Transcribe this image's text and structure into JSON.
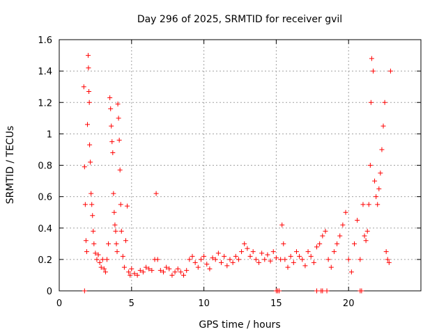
{
  "chart_data": {
    "type": "scatter",
    "title": "Day 296 of 2025, SRMTID for receiver gvil",
    "xlabel": "GPS time / hours",
    "ylabel": "SRMTID / TECUs",
    "xlim": [
      0,
      25
    ],
    "ylim": [
      0,
      1.6
    ],
    "xticks": [
      0,
      5,
      10,
      15,
      20
    ],
    "yticks": [
      0,
      0.2,
      0.4,
      0.6,
      0.8,
      1,
      1.2,
      1.4,
      1.6
    ],
    "xtick_labels": [
      "0",
      "5",
      "10",
      "15",
      "20"
    ],
    "ytick_labels": [
      "0",
      "0.2",
      "0.4",
      "0.6",
      "0.8",
      "1",
      "1.2",
      "1.4",
      "1.6"
    ],
    "grid": true,
    "marker": "+",
    "color": "#ff0000",
    "series": [
      {
        "name": "SRMTID",
        "x": [
          1.75,
          1.8,
          1.85,
          1.9,
          1.95,
          2.0,
          2.02,
          2.05,
          2.08,
          2.1,
          2.15,
          2.2,
          2.25,
          2.3,
          2.35,
          2.4,
          2.5,
          2.6,
          2.7,
          2.8,
          2.9,
          3.0,
          3.1,
          3.2,
          3.3,
          3.4,
          3.5,
          3.55,
          3.6,
          3.65,
          3.7,
          3.75,
          3.8,
          3.85,
          3.9,
          3.95,
          4.0,
          4.05,
          4.1,
          4.15,
          4.2,
          4.25,
          4.3,
          4.4,
          4.5,
          4.6,
          4.7,
          4.8,
          4.9,
          5.0,
          5.2,
          5.4,
          5.6,
          5.8,
          6.0,
          6.2,
          6.4,
          6.6,
          6.7,
          6.8,
          7.0,
          7.2,
          7.4,
          7.6,
          7.8,
          8.0,
          8.2,
          8.4,
          8.6,
          8.8,
          9.0,
          9.2,
          9.4,
          9.6,
          9.8,
          10.0,
          10.2,
          10.4,
          10.6,
          10.8,
          11.0,
          11.2,
          11.4,
          11.6,
          11.8,
          12.0,
          12.2,
          12.4,
          12.6,
          12.8,
          13.0,
          13.2,
          13.4,
          13.6,
          13.8,
          14.0,
          14.2,
          14.4,
          14.6,
          14.8,
          15.0,
          15.1,
          15.3,
          15.4,
          15.5,
          15.6,
          15.8,
          16.0,
          16.2,
          16.4,
          16.6,
          16.8,
          17.0,
          17.2,
          17.4,
          17.6,
          17.8,
          18.0,
          18.2,
          18.4,
          18.6,
          18.8,
          19.0,
          19.2,
          19.4,
          19.6,
          19.8,
          20.0,
          20.2,
          20.4,
          20.6,
          20.8,
          21.0,
          21.1,
          21.2,
          21.3,
          21.4,
          21.5,
          21.55,
          21.6,
          21.7,
          21.8,
          21.9,
          22.0,
          22.1,
          22.2,
          22.3,
          22.4,
          22.5,
          22.6,
          22.7,
          22.8,
          22.9,
          1.7,
          1.75,
          15.0,
          15.2,
          17.8,
          18.1,
          18.2,
          18.5,
          20.8,
          20.9
        ],
        "y": [
          0.79,
          0.55,
          0.32,
          0.25,
          1.06,
          1.5,
          1.42,
          1.27,
          1.2,
          0.93,
          0.82,
          0.62,
          0.55,
          0.48,
          0.38,
          0.3,
          0.24,
          0.2,
          0.23,
          0.18,
          0.15,
          0.2,
          0.14,
          0.12,
          0.2,
          0.3,
          1.23,
          1.16,
          1.05,
          0.95,
          0.88,
          0.62,
          0.5,
          0.42,
          0.38,
          0.3,
          0.25,
          1.19,
          1.1,
          0.96,
          0.77,
          0.55,
          0.38,
          0.22,
          0.15,
          0.32,
          0.54,
          0.12,
          0.1,
          0.14,
          0.11,
          0.1,
          0.13,
          0.12,
          0.15,
          0.14,
          0.13,
          0.2,
          0.62,
          0.2,
          0.13,
          0.12,
          0.15,
          0.14,
          0.1,
          0.12,
          0.14,
          0.12,
          0.1,
          0.13,
          0.2,
          0.22,
          0.18,
          0.15,
          0.2,
          0.22,
          0.17,
          0.14,
          0.21,
          0.2,
          0.24,
          0.18,
          0.22,
          0.16,
          0.2,
          0.18,
          0.22,
          0.2,
          0.25,
          0.3,
          0.27,
          0.22,
          0.25,
          0.2,
          0.18,
          0.24,
          0.2,
          0.23,
          0.19,
          0.25,
          0.21,
          0.0,
          0.2,
          0.42,
          0.3,
          0.2,
          0.15,
          0.22,
          0.18,
          0.25,
          0.22,
          0.2,
          0.16,
          0.25,
          0.22,
          0.18,
          0.28,
          0.3,
          0.35,
          0.38,
          0.2,
          0.15,
          0.25,
          0.3,
          0.35,
          0.42,
          0.5,
          0.2,
          0.12,
          0.3,
          0.45,
          0.2,
          0.55,
          0.35,
          0.32,
          0.38,
          0.55,
          0.8,
          1.2,
          1.48,
          1.4,
          0.7,
          0.6,
          0.55,
          0.65,
          0.75,
          0.9,
          1.05,
          1.2,
          0.25,
          0.2,
          0.18,
          1.4,
          1.3,
          0.0,
          0.0,
          0.0,
          0.0,
          0.0,
          0.0,
          0.0,
          0.0,
          0.0
        ]
      }
    ]
  }
}
